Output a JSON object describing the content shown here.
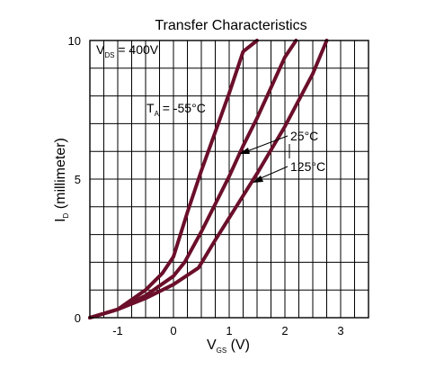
{
  "chart_data": {
    "type": "line",
    "title": "Transfer Characteristics",
    "xlabel": {
      "main": "V",
      "sub": "GS",
      "unit": " (V)"
    },
    "ylabel": {
      "main": "I",
      "sub": "D",
      "unit": " (millimeter)"
    },
    "xlim": [
      -1.5,
      3.5
    ],
    "ylim": [
      0,
      10
    ],
    "x_ticks": [
      -1,
      0,
      1,
      2,
      3
    ],
    "x_tick_labels": [
      "-1",
      "0",
      "1",
      "2",
      "3"
    ],
    "y_ticks": [
      0,
      5,
      10
    ],
    "y_tick_labels": [
      "0",
      "5",
      "10"
    ],
    "grid": true,
    "condition": {
      "main": "V",
      "sub": "DS",
      "rest": " = 400V"
    },
    "line_color": "#6b0f2a",
    "series": [
      {
        "name": "-55°C",
        "label_main": "T",
        "label_sub": "A",
        "label_rest": " = -55°C",
        "x": [
          -1.5,
          -1.0,
          -0.5,
          -0.2,
          0.0,
          0.25,
          0.5,
          0.75,
          1.0,
          1.25,
          1.5
        ],
        "y": [
          0.0,
          0.3,
          1.0,
          1.6,
          2.2,
          3.8,
          5.3,
          6.7,
          8.1,
          9.6,
          10.0
        ]
      },
      {
        "name": "25°C",
        "label_main": "25°C",
        "x": [
          -1.5,
          -1.0,
          -0.5,
          0.0,
          0.2,
          0.5,
          0.75,
          1.0,
          1.25,
          1.5,
          1.75,
          2.0,
          2.2
        ],
        "y": [
          0.0,
          0.3,
          0.8,
          1.5,
          2.0,
          3.1,
          4.1,
          5.1,
          6.2,
          7.2,
          8.3,
          9.4,
          10.0
        ]
      },
      {
        "name": "125°C",
        "label_main": "125°C",
        "x": [
          -1.5,
          -1.0,
          -0.5,
          0.0,
          0.45,
          0.75,
          1.0,
          1.5,
          2.0,
          2.5,
          2.75
        ],
        "y": [
          0.0,
          0.3,
          0.7,
          1.2,
          1.8,
          2.8,
          3.6,
          5.2,
          6.9,
          8.8,
          10.0
        ]
      }
    ]
  }
}
